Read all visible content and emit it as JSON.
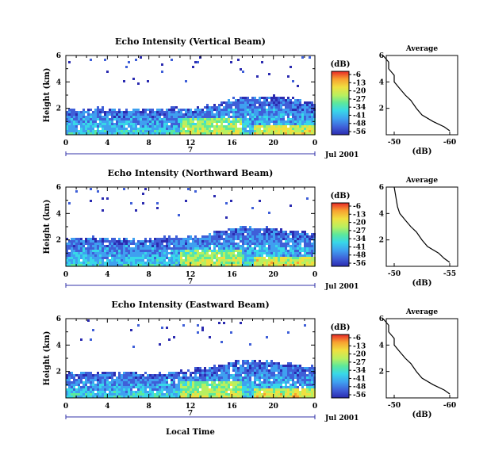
{
  "colors": {
    "colorbar": [
      "#2b2bb0",
      "#3f5fd8",
      "#3fa0f0",
      "#38d8e8",
      "#5ce89c",
      "#b8f060",
      "#f0e040",
      "#f8a030",
      "#e82828"
    ],
    "line": "#000000"
  },
  "shared": {
    "ylabel": "Height (km)",
    "xlabel": "Local Time",
    "date_label": "Jul 2001",
    "day_label": "7",
    "x_ticks": [
      "0",
      "4",
      "8",
      "12",
      "16",
      "20",
      "0"
    ],
    "y_ticks": [
      "2",
      "4",
      "6"
    ],
    "colorbar_title": "(dB)",
    "colorbar_ticks": [
      "-6",
      "-13",
      "-20",
      "-27",
      "-34",
      "-41",
      "-48",
      "-56"
    ],
    "avg_title": "Average",
    "avg_xlabel": "(dB)"
  },
  "chart_data": [
    {
      "type": "heatmap",
      "title": "Echo Intensity (Vertical Beam)",
      "xlabel": "Local Time",
      "ylabel": "Height (km)",
      "xlim": [
        0,
        24
      ],
      "ylim": [
        0,
        6
      ],
      "clim": [
        -56,
        -6
      ],
      "layer_top_km": [
        1.9,
        2.0,
        2.1,
        2.0,
        2.0,
        2.0,
        2.0,
        2.1,
        2.1,
        2.2,
        2.4,
        2.7,
        2.9,
        3.0,
        3.0,
        2.9,
        2.7,
        2.6
      ],
      "avg_xticks": [
        "-50",
        "-60"
      ],
      "avg_profile": {
        "height_km": [
          0.3,
          0.6,
          1.0,
          1.5,
          2.0,
          2.6,
          3.0,
          3.5,
          4.0,
          4.5,
          5.0,
          5.5,
          6.0
        ],
        "db": [
          -60,
          -59,
          -57,
          -55,
          -54,
          -53,
          -52,
          -51,
          -50,
          -50,
          -49,
          -49,
          -48
        ]
      }
    },
    {
      "type": "heatmap",
      "title": "Echo Intensity (Northward Beam)",
      "xlabel": "Local Time",
      "ylabel": "Height (km)",
      "xlim": [
        0,
        24
      ],
      "ylim": [
        0,
        6
      ],
      "clim": [
        -56,
        -6
      ],
      "layer_top_km": [
        2.2,
        2.2,
        2.3,
        2.2,
        2.2,
        2.1,
        2.2,
        2.3,
        2.3,
        2.4,
        2.6,
        2.9,
        3.1,
        3.1,
        3.0,
        2.8,
        2.7,
        2.5
      ],
      "avg_xticks": [
        "-50",
        "-55"
      ],
      "avg_profile": {
        "height_km": [
          0.3,
          0.6,
          1.0,
          1.5,
          2.0,
          2.6,
          3.0,
          3.5,
          4.0,
          4.5,
          5.0,
          5.5,
          6.0
        ],
        "db": [
          -55,
          -54.5,
          -54,
          -53,
          -52.5,
          -52,
          -51.5,
          -51,
          -50.5,
          -50.3,
          -50.2,
          -50.1,
          -50
        ]
      }
    },
    {
      "type": "heatmap",
      "title": "Echo Intensity (Eastward Beam)",
      "xlabel": "Local Time",
      "ylabel": "Height (km)",
      "xlim": [
        0,
        24
      ],
      "ylim": [
        0,
        6
      ],
      "clim": [
        -56,
        -6
      ],
      "layer_top_km": [
        1.9,
        2.0,
        2.0,
        2.0,
        2.0,
        2.0,
        1.9,
        2.0,
        2.1,
        2.3,
        2.5,
        2.8,
        2.9,
        2.9,
        2.8,
        2.7,
        2.6,
        2.5
      ],
      "avg_xticks": [
        "-50",
        "-60"
      ],
      "avg_profile": {
        "height_km": [
          0.3,
          0.6,
          1.0,
          1.5,
          2.0,
          2.6,
          3.0,
          3.5,
          4.0,
          4.5,
          5.0,
          5.5,
          6.0
        ],
        "db": [
          -60,
          -59,
          -57,
          -55,
          -54,
          -53,
          -52,
          -51,
          -50,
          -50,
          -49,
          -49,
          -48
        ]
      }
    }
  ]
}
